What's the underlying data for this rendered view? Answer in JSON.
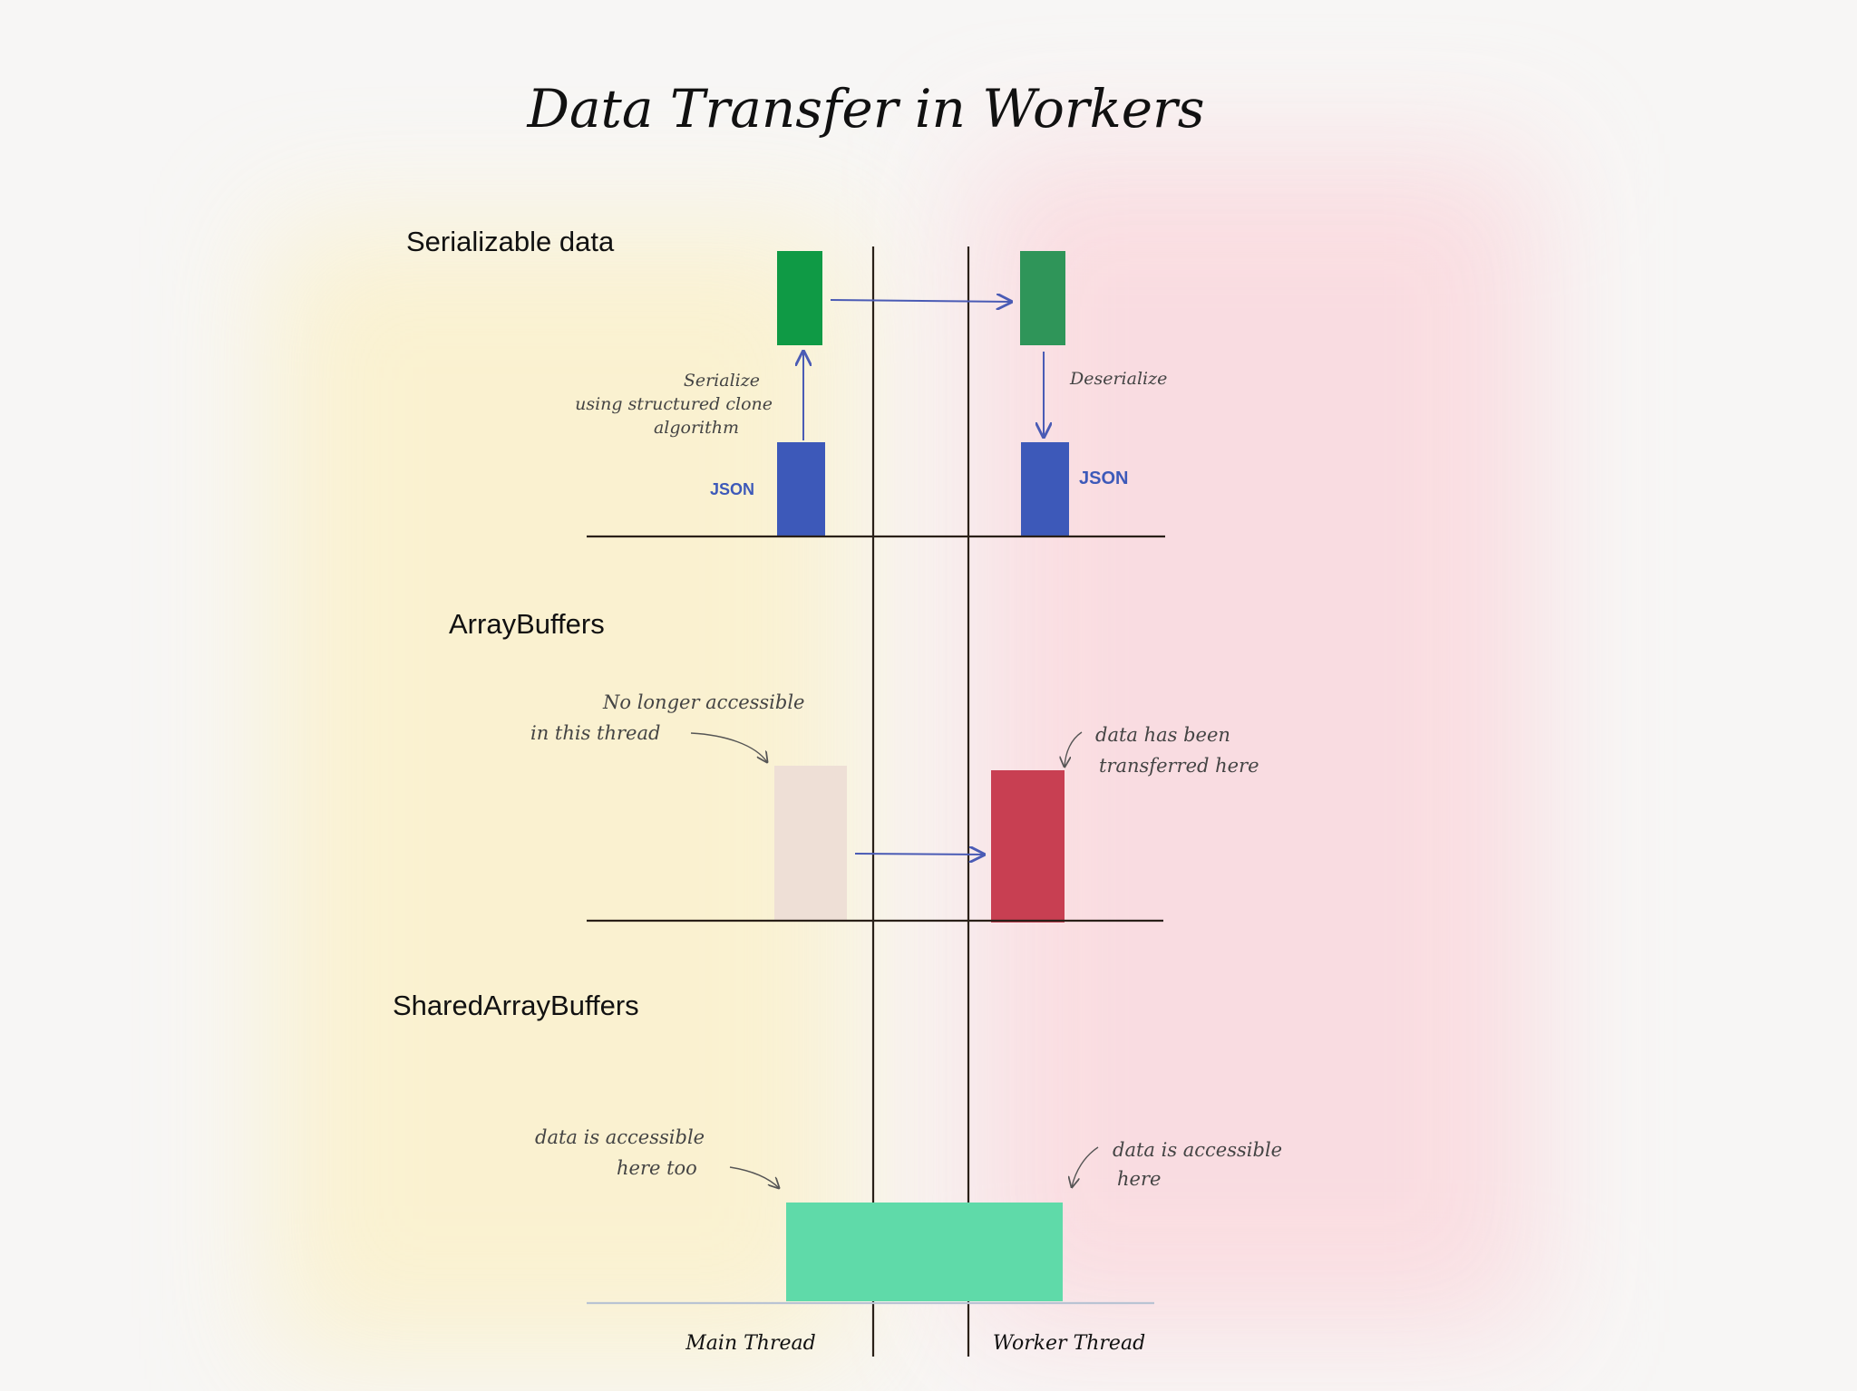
{
  "title": "Data Transfer in Workers",
  "sections": {
    "serializable": {
      "heading": "Serializable data",
      "serialize_note": [
        "Serialize",
        "using structured clone",
        "algorithm"
      ],
      "deserialize_note": "Deserialize",
      "json_left": "JSON",
      "json_right": "JSON"
    },
    "arraybuffers": {
      "heading": "ArrayBuffers",
      "main_note": [
        "No longer accessible",
        "in this thread"
      ],
      "worker_note": [
        "data has been",
        "transferred here"
      ]
    },
    "shared": {
      "heading": "SharedArrayBuffers",
      "main_note": [
        "data is accessible",
        "here too"
      ],
      "worker_note": [
        "data is accessible",
        "here"
      ]
    }
  },
  "footer": {
    "main_thread": "Main Thread",
    "worker_thread": "Worker Thread"
  },
  "colors": {
    "serialized_main": "#0f9a45",
    "serialized_worker": "#2f9559",
    "json": "#3d59b9",
    "arrow": "#4a5bb5",
    "arraybuffer_faded": "#eedfd6",
    "arraybuffer_worker": "#c83f52",
    "shared": "#5fdaa9",
    "line": "#2a2018",
    "main_tint": "#fbf0c4",
    "worker_tint": "#fadadf"
  }
}
